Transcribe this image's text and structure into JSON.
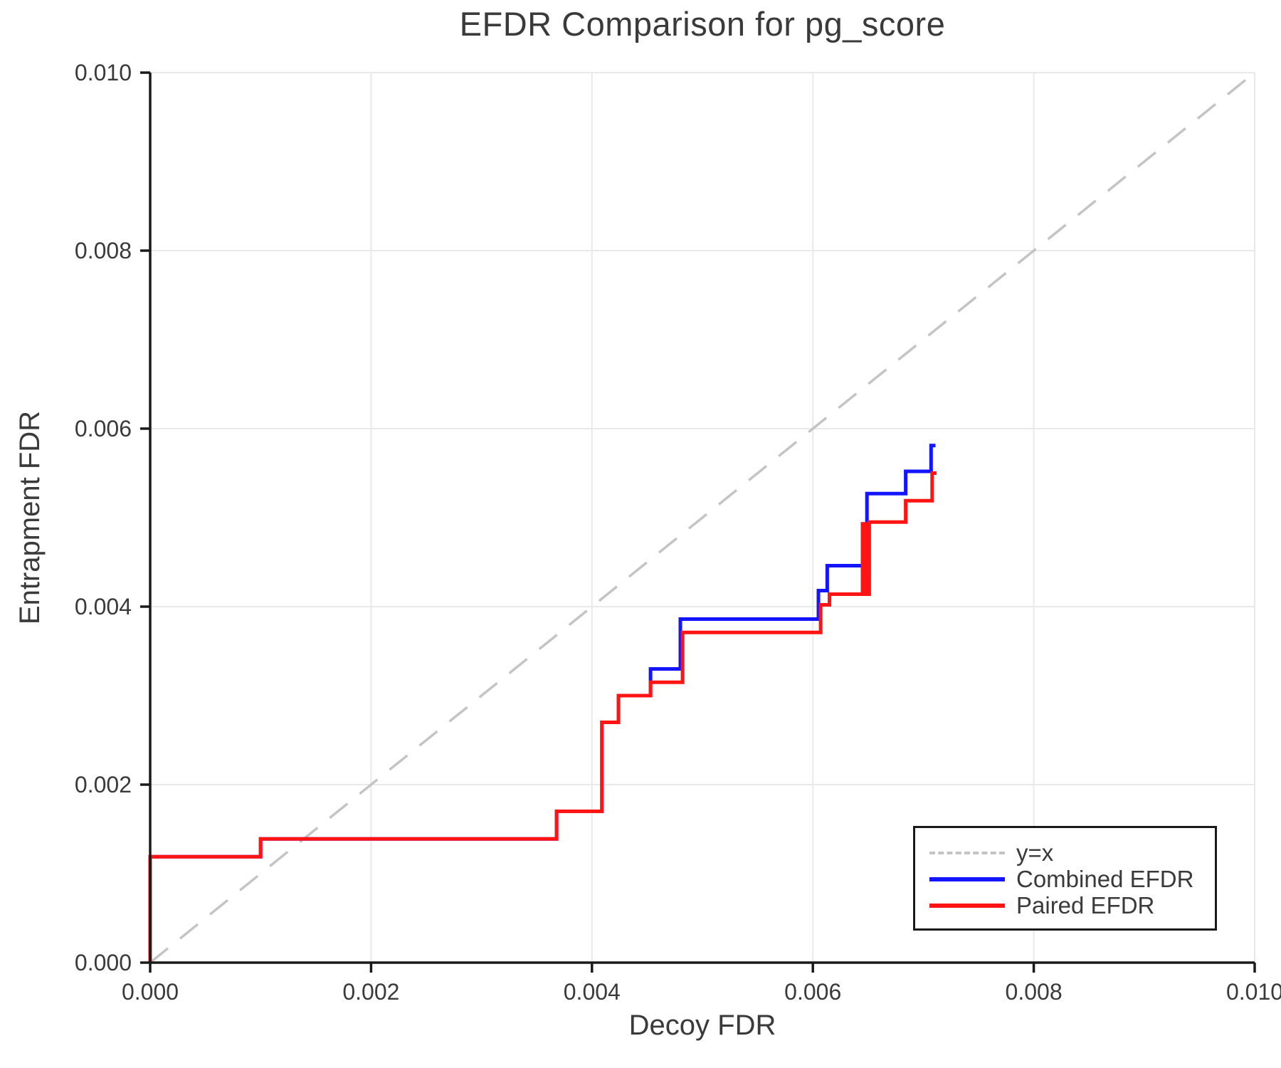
{
  "chart_data": {
    "type": "line",
    "title": "EFDR Comparison for pg_score",
    "xlabel": "Decoy FDR",
    "ylabel": "Entrapment FDR",
    "xlim": [
      0.0,
      0.01
    ],
    "ylim": [
      0.0,
      0.01
    ],
    "x_ticks": [
      0.0,
      0.002,
      0.004,
      0.006,
      0.008,
      0.01
    ],
    "y_ticks": [
      0.0,
      0.002,
      0.004,
      0.006,
      0.008,
      0.01
    ],
    "tick_decimals": 3,
    "grid": true,
    "background_color": "#ffffff",
    "axis_color": "#1a1a1a",
    "grid_color": "#e9e9e9",
    "text_color": "#3a3a3a",
    "legend": {
      "position": "lower-right",
      "border_color": "#1a1a1a"
    },
    "series": [
      {
        "name": "y=x",
        "color": "#c4c4c4",
        "style": "dashed",
        "width": 3.5,
        "points": [
          [
            0.0,
            0.0
          ],
          [
            0.01,
            0.01
          ]
        ]
      },
      {
        "name": "Combined EFDR",
        "color": "#1414ff",
        "style": "solid",
        "width": 5,
        "points": [
          [
            0.0,
            0.0
          ],
          [
            0.0,
            0.00119
          ],
          [
            0.001,
            0.00119
          ],
          [
            0.001,
            0.00139
          ],
          [
            0.00368,
            0.00139
          ],
          [
            0.00368,
            0.0017
          ],
          [
            0.00409,
            0.0017
          ],
          [
            0.00409,
            0.0027
          ],
          [
            0.00424,
            0.0027
          ],
          [
            0.00424,
            0.003
          ],
          [
            0.00453,
            0.003
          ],
          [
            0.00453,
            0.0033
          ],
          [
            0.0048,
            0.0033
          ],
          [
            0.0048,
            0.00386
          ],
          [
            0.00605,
            0.00386
          ],
          [
            0.00605,
            0.00418
          ],
          [
            0.00613,
            0.00418
          ],
          [
            0.00613,
            0.00446
          ],
          [
            0.00649,
            0.00446
          ],
          [
            0.00649,
            0.00527
          ],
          [
            0.00684,
            0.00527
          ],
          [
            0.00684,
            0.00552
          ],
          [
            0.00707,
            0.00552
          ],
          [
            0.00707,
            0.00581
          ],
          [
            0.00711,
            0.00581
          ]
        ]
      },
      {
        "name": "Paired EFDR",
        "color": "#ff1414",
        "style": "solid",
        "width": 5,
        "points": [
          [
            0.0,
            0.0
          ],
          [
            0.0,
            0.00119
          ],
          [
            0.001,
            0.00119
          ],
          [
            0.001,
            0.00139
          ],
          [
            0.00368,
            0.00139
          ],
          [
            0.00368,
            0.0017
          ],
          [
            0.00409,
            0.0017
          ],
          [
            0.00409,
            0.0027
          ],
          [
            0.00424,
            0.0027
          ],
          [
            0.00424,
            0.003
          ],
          [
            0.00453,
            0.003
          ],
          [
            0.00453,
            0.00315
          ],
          [
            0.00482,
            0.00315
          ],
          [
            0.00482,
            0.00371
          ],
          [
            0.00607,
            0.00371
          ],
          [
            0.00607,
            0.00402
          ],
          [
            0.00615,
            0.00402
          ],
          [
            0.00615,
            0.00414
          ],
          [
            0.00645,
            0.00414
          ],
          [
            0.00645,
            0.00493
          ],
          [
            0.00648,
            0.00493
          ],
          [
            0.00648,
            0.00414
          ],
          [
            0.00651,
            0.00414
          ],
          [
            0.00651,
            0.00495
          ],
          [
            0.00684,
            0.00495
          ],
          [
            0.00684,
            0.00519
          ],
          [
            0.00708,
            0.00519
          ],
          [
            0.00708,
            0.0055
          ],
          [
            0.00712,
            0.0055
          ]
        ]
      }
    ]
  }
}
